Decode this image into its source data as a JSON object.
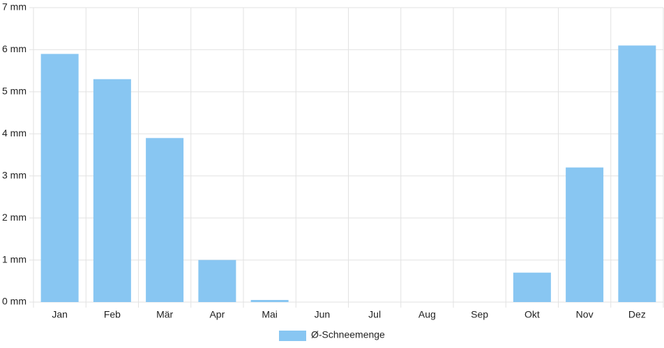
{
  "chart_data": {
    "type": "bar",
    "categories": [
      "Jan",
      "Feb",
      "Mär",
      "Apr",
      "Mai",
      "Jun",
      "Jul",
      "Aug",
      "Sep",
      "Okt",
      "Nov",
      "Dez"
    ],
    "series": [
      {
        "name": "Ø-Schneemenge",
        "color": "#88c6f2",
        "values": [
          5.9,
          5.3,
          3.9,
          1.0,
          0.05,
          0,
          0,
          0,
          0,
          0.7,
          3.2,
          6.1
        ]
      }
    ],
    "ylim": [
      0,
      7
    ],
    "yticks": [
      {
        "value": 0,
        "label": "0 mm"
      },
      {
        "value": 1,
        "label": "1 mm"
      },
      {
        "value": 2,
        "label": "2 mm"
      },
      {
        "value": 3,
        "label": "3 mm"
      },
      {
        "value": 4,
        "label": "4 mm"
      },
      {
        "value": 5,
        "label": "5 mm"
      },
      {
        "value": 6,
        "label": "6 mm"
      },
      {
        "value": 7,
        "label": "7 mm"
      }
    ],
    "grid": true,
    "legend": "bottom"
  }
}
